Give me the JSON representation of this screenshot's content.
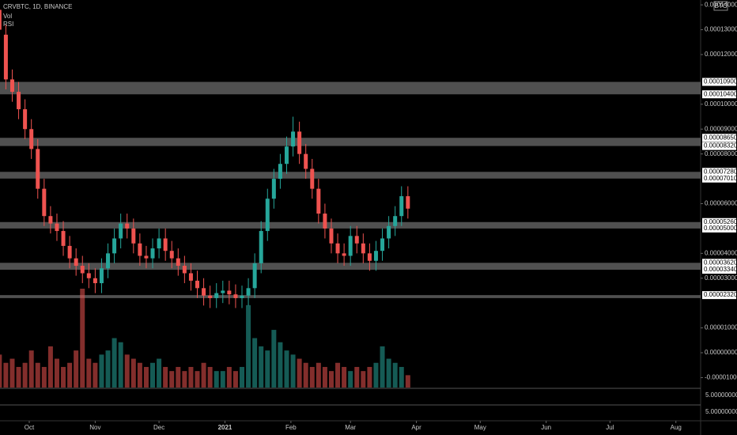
{
  "chart_data": {
    "type": "candlestick",
    "title": "CRVBTC, 1D, BINANCE",
    "indicator_labels": [
      "Vol",
      "RSI"
    ],
    "currency_badge": "BTC",
    "up_color": "#26a69a",
    "down_color": "#ef5350",
    "zone_color": "#6b6b6b",
    "x": [
      -14,
      -11,
      -8,
      -5,
      -2,
      1,
      4,
      7,
      10,
      13,
      16,
      19,
      22,
      25,
      28,
      31,
      34,
      37,
      40,
      43,
      46,
      49,
      52,
      55,
      58,
      61,
      64,
      67,
      70,
      73,
      76,
      79,
      82,
      85,
      88,
      91,
      94,
      97,
      100,
      103,
      106,
      109,
      112,
      115,
      118,
      121,
      124,
      127,
      130,
      133,
      136,
      139,
      142,
      145,
      148,
      151,
      154,
      157,
      160,
      163,
      166,
      169,
      172,
      175,
      178
    ],
    "open": [
      0.000138,
      0.000128,
      0.00011,
      0.000105,
      9.8e-05,
      9e-05,
      8.2e-05,
      6.6e-05,
      5.5e-05,
      5.2e-05,
      4.9e-05,
      4.3e-05,
      3.8e-05,
      3.5e-05,
      3.2e-05,
      3e-05,
      2.8e-05,
      3.4e-05,
      4e-05,
      4.6e-05,
      5.2e-05,
      5e-05,
      4.4e-05,
      3.9e-05,
      3.8e-05,
      4.2e-05,
      4.6e-05,
      4.1e-05,
      3.8e-05,
      3.5e-05,
      3.2e-05,
      2.9e-05,
      2.6e-05,
      2.3e-05,
      2.2e-05,
      2.4e-05,
      2.5e-05,
      2.35e-05,
      2.2e-05,
      2.3e-05,
      2.6e-05,
      3.6e-05,
      4.9e-05,
      6.2e-05,
      7e-05,
      7.6e-05,
      8.3e-05,
      8.9e-05,
      8e-05,
      7.4e-05,
      6.6e-05,
      5.6e-05,
      5e-05,
      4.4e-05,
      4e-05,
      3.9e-05,
      4.7e-05,
      4.4e-05,
      4e-05,
      3.7e-05,
      4.1e-05,
      4.6e-05,
      5.1e-05,
      5.5e-05,
      6.3e-05
    ],
    "high": [
      0.000142,
      0.000132,
      0.000114,
      0.000109,
      0.000102,
      9.4e-05,
      8.6e-05,
      7e-05,
      5.9e-05,
      5.6e-05,
      5.3e-05,
      4.7e-05,
      4.2e-05,
      3.9e-05,
      3.6e-05,
      3.4e-05,
      3.8e-05,
      4.4e-05,
      5e-05,
      5.6e-05,
      5.6e-05,
      5.4e-05,
      4.8e-05,
      4.3e-05,
      4.6e-05,
      5e-05,
      5e-05,
      4.5e-05,
      4.2e-05,
      3.9e-05,
      3.6e-05,
      3.3e-05,
      3e-05,
      2.7e-05,
      2.8e-05,
      2.9e-05,
      2.9e-05,
      2.75e-05,
      2.7e-05,
      3e-05,
      4e-05,
      5.3e-05,
      6.6e-05,
      7.4e-05,
      8e-05,
      8.7e-05,
      9.5e-05,
      9.3e-05,
      8.4e-05,
      7.8e-05,
      7e-05,
      6e-05,
      5.4e-05,
      4.8e-05,
      4.4e-05,
      5.1e-05,
      5.1e-05,
      4.8e-05,
      4.4e-05,
      4.5e-05,
      5e-05,
      5.5e-05,
      5.9e-05,
      6.7e-05,
      6.7e-05
    ],
    "low": [
      0.000126,
      0.000106,
      0.000101,
      9.4e-05,
      8.6e-05,
      7.8e-05,
      6.2e-05,
      5.1e-05,
      4.8e-05,
      4.5e-05,
      3.9e-05,
      3.4e-05,
      3.1e-05,
      2.8e-05,
      2.6e-05,
      2.4e-05,
      2.4e-05,
      3e-05,
      3.6e-05,
      4.2e-05,
      4.6e-05,
      4e-05,
      3.5e-05,
      3.4e-05,
      3.4e-05,
      3.8e-05,
      3.7e-05,
      3.4e-05,
      3.1e-05,
      2.8e-05,
      2.5e-05,
      2.2e-05,
      1.9e-05,
      1.8e-05,
      1.8e-05,
      2e-05,
      1.95e-05,
      1.8e-05,
      1.8e-05,
      1.9e-05,
      2.2e-05,
      3.2e-05,
      4.5e-05,
      5.8e-05,
      6.6e-05,
      7.2e-05,
      7.9e-05,
      7.6e-05,
      7e-05,
      6.2e-05,
      5.2e-05,
      4.6e-05,
      4e-05,
      3.6e-05,
      3.5e-05,
      3.5e-05,
      4e-05,
      3.6e-05,
      3.3e-05,
      3.3e-05,
      3.7e-05,
      4.2e-05,
      4.7e-05,
      5.1e-05,
      5.4e-05
    ],
    "close": [
      0.00013,
      0.00011,
      0.000105,
      9.8e-05,
      9e-05,
      8.2e-05,
      6.6e-05,
      5.5e-05,
      5.2e-05,
      4.9e-05,
      4.3e-05,
      3.8e-05,
      3.5e-05,
      3.2e-05,
      3e-05,
      2.8e-05,
      3.4e-05,
      4e-05,
      4.6e-05,
      5.2e-05,
      5e-05,
      4.4e-05,
      3.9e-05,
      3.8e-05,
      4.2e-05,
      4.6e-05,
      4.1e-05,
      3.8e-05,
      3.5e-05,
      3.2e-05,
      2.9e-05,
      2.6e-05,
      2.3e-05,
      2.2e-05,
      2.4e-05,
      2.5e-05,
      2.35e-05,
      2.2e-05,
      2.3e-05,
      2.6e-05,
      3.6e-05,
      4.9e-05,
      6.2e-05,
      7e-05,
      7.6e-05,
      8.3e-05,
      8.9e-05,
      8e-05,
      7.4e-05,
      6.6e-05,
      5.6e-05,
      5e-05,
      4.4e-05,
      4e-05,
      3.9e-05,
      4.7e-05,
      4.4e-05,
      4e-05,
      3.7e-05,
      4.1e-05,
      4.6e-05,
      5.1e-05,
      5.5e-05,
      6.3e-05,
      5.8e-05
    ],
    "volume": [
      40,
      30,
      35,
      25,
      30,
      45,
      30,
      25,
      50,
      35,
      25,
      30,
      45,
      120,
      35,
      30,
      40,
      45,
      60,
      55,
      40,
      35,
      30,
      25,
      30,
      35,
      25,
      20,
      25,
      20,
      25,
      20,
      30,
      25,
      20,
      20,
      25,
      20,
      25,
      100,
      60,
      50,
      45,
      70,
      55,
      45,
      40,
      35,
      30,
      25,
      30,
      25,
      20,
      30,
      25,
      20,
      25,
      20,
      25,
      30,
      50,
      35,
      30,
      25,
      15
    ],
    "ylim": [
      -1.05e-05,
      0.000141
    ],
    "yticks": [
      {
        "value": 0.00014,
        "label": "0.00014000"
      },
      {
        "value": 0.00013,
        "label": "0.00013000"
      },
      {
        "value": 0.00012,
        "label": "0.00012000"
      },
      {
        "value": 0.0001,
        "label": "0.00010000"
      },
      {
        "value": 9e-05,
        "label": "0.00009000"
      },
      {
        "value": 8e-05,
        "label": "0.00008000"
      },
      {
        "value": 6e-05,
        "label": "0.00006000"
      },
      {
        "value": 4e-05,
        "label": "0.00004000"
      },
      {
        "value": 3e-05,
        "label": "0.00003000"
      },
      {
        "value": 1e-05,
        "label": "0.00001000"
      },
      {
        "value": 0,
        "label": "0.00000000"
      },
      {
        "value": -1e-05,
        "label": "-0.00001000"
      }
    ],
    "zones": [
      [
        0.000104,
        0.000109
      ],
      [
        8.32e-05,
        8.65e-05
      ],
      [
        7.01e-05,
        7.28e-05
      ],
      [
        5e-05,
        5.26e-05
      ],
      [
        3.34e-05,
        3.62e-05
      ],
      [
        2.2e-05,
        2.32e-05
      ]
    ],
    "level_labels": [
      {
        "value": 0.000109,
        "label": "0.00010900"
      },
      {
        "value": 0.000104,
        "label": "0.00010400"
      },
      {
        "value": 8.65e-05,
        "label": "0.00008650"
      },
      {
        "value": 8.32e-05,
        "label": "0.00008320"
      },
      {
        "value": 7.28e-05,
        "label": "0.00007280"
      },
      {
        "value": 7.01e-05,
        "label": "0.00007010"
      },
      {
        "value": 5.26e-05,
        "label": "0.00005260"
      },
      {
        "value": 5e-05,
        "label": "0.00005000"
      },
      {
        "value": 3.62e-05,
        "label": "0.00003620"
      },
      {
        "value": 3.34e-05,
        "label": "0.00003340"
      },
      {
        "value": 2.32e-05,
        "label": "0.00002320"
      }
    ],
    "rsi_ticks": [
      "5.00000000",
      "5.00000000"
    ],
    "xticks": [
      {
        "value": 0,
        "label": "Oct"
      },
      {
        "value": 31,
        "label": "Nov"
      },
      {
        "value": 61,
        "label": "Dec"
      },
      {
        "value": 92,
        "label": "2021"
      },
      {
        "value": 123,
        "label": "Feb"
      },
      {
        "value": 151,
        "label": "Mar"
      },
      {
        "value": 182,
        "label": "Apr"
      },
      {
        "value": 212,
        "label": "May"
      },
      {
        "value": 243,
        "label": "Jun"
      },
      {
        "value": 273,
        "label": "Jul"
      },
      {
        "value": 304,
        "label": "Aug"
      }
    ]
  }
}
